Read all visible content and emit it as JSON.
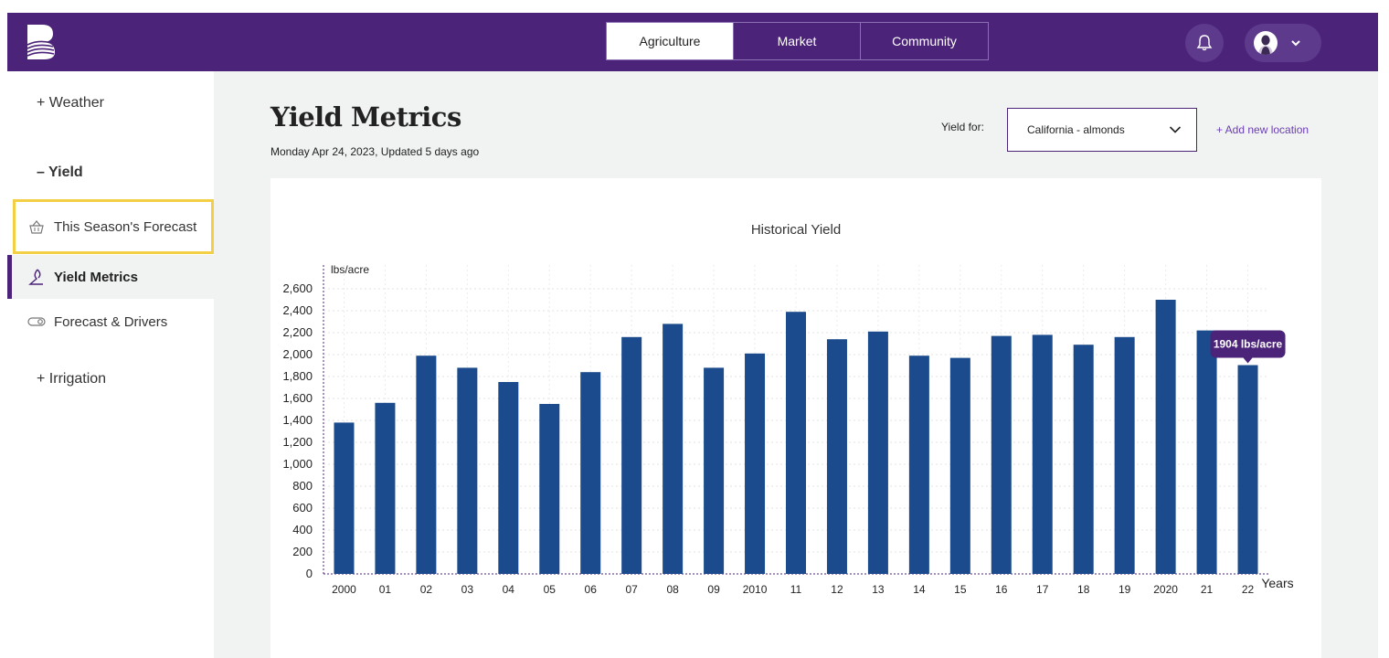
{
  "topbar": {
    "tabs": [
      {
        "label": "Agriculture",
        "active": true
      },
      {
        "label": "Market",
        "active": false
      },
      {
        "label": "Community",
        "active": false
      }
    ],
    "icons": [
      "bell-icon",
      "avatar",
      "chevron-down-icon"
    ]
  },
  "sidebar": {
    "sections": [
      {
        "label": "+ Weather"
      },
      {
        "label": "– Yield"
      },
      {
        "label": "+ Irrigation"
      }
    ],
    "items": [
      {
        "label": "This Season's Forecast",
        "icon": "basket-icon",
        "highlighted": true
      },
      {
        "label": "Yield Metrics",
        "icon": "yield-icon",
        "active": true
      },
      {
        "label": "Forecast & Drivers",
        "icon": "toggle-icon"
      }
    ]
  },
  "main": {
    "title": "Yield Metrics",
    "subtitle": "Monday Apr 24, 2023, Updated 5 days ago",
    "yield_for_label": "Yield for:",
    "yield_for_value": "California - almonds",
    "add_location": "+ Add new location"
  },
  "colors": {
    "brand": "#4b2379",
    "bar": "#1b4b8c",
    "highlight": "#f3cf45"
  },
  "chart_data": {
    "type": "bar",
    "title": "Historical Yield",
    "ylabel": "lbs/acre",
    "xlabel": "Years",
    "ylim": [
      0,
      2600
    ],
    "yticks": [
      0,
      200,
      400,
      600,
      800,
      1000,
      1200,
      1400,
      1600,
      1800,
      2000,
      2200,
      2400,
      2600
    ],
    "ytick_labels": [
      "0",
      "200",
      "400",
      "600",
      "800",
      "1,000",
      "1,200",
      "1,400",
      "1,600",
      "1,800",
      "2,000",
      "2,200",
      "2,400",
      "2,600"
    ],
    "categories": [
      "2000",
      "01",
      "02",
      "03",
      "04",
      "05",
      "06",
      "07",
      "08",
      "09",
      "2010",
      "11",
      "12",
      "13",
      "14",
      "15",
      "16",
      "17",
      "18",
      "19",
      "2020",
      "21",
      "22"
    ],
    "values": [
      1380,
      1560,
      1990,
      1880,
      1750,
      1550,
      1840,
      2160,
      2280,
      1880,
      2010,
      2390,
      2140,
      2210,
      1990,
      1970,
      2170,
      2180,
      2090,
      2160,
      2500,
      2220,
      1904
    ],
    "grid": true,
    "tooltip": {
      "category": "22",
      "text": "1904 lbs/acre"
    }
  }
}
